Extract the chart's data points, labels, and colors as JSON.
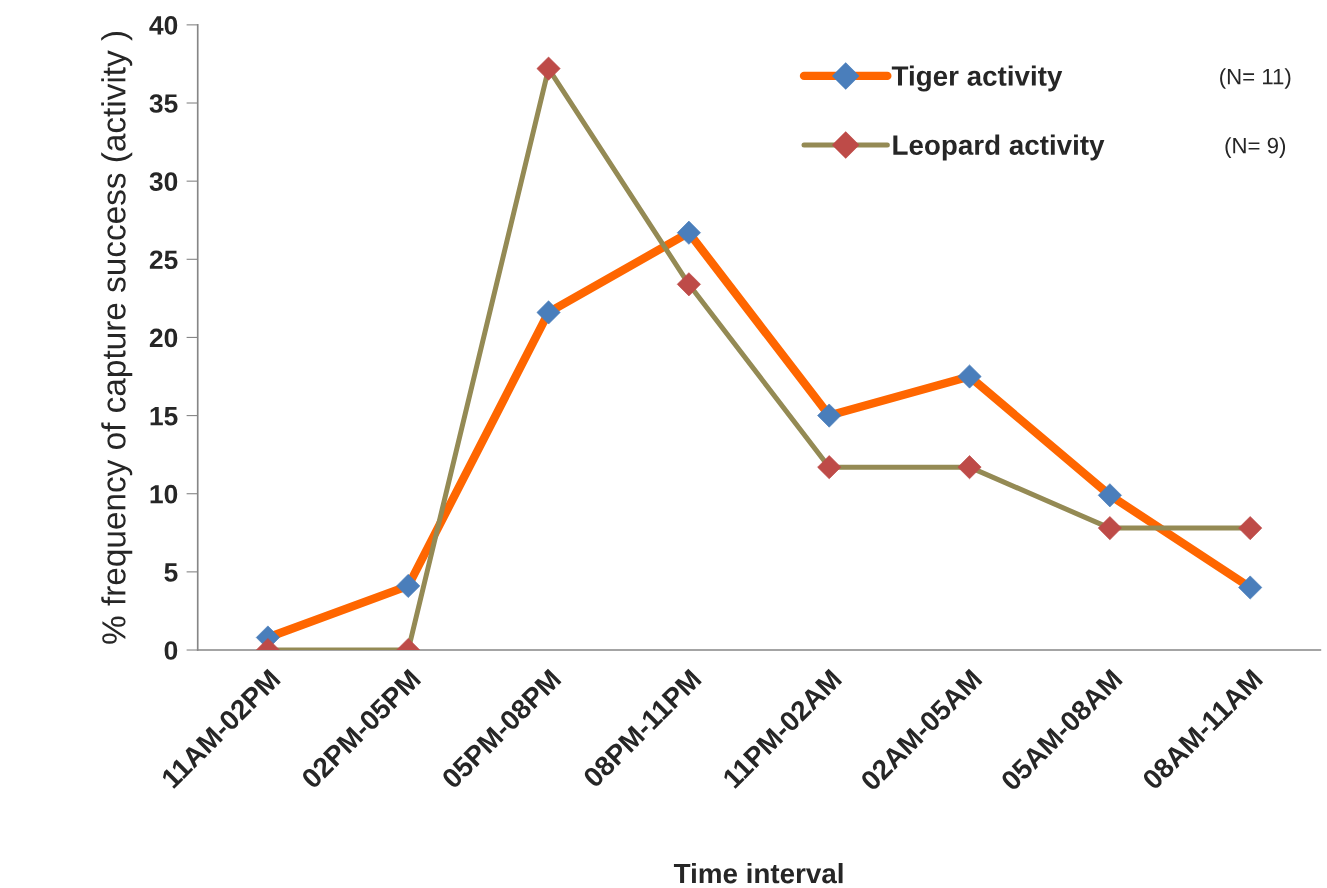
{
  "chart_data": {
    "type": "line",
    "xlabel": "Time interval",
    "ylabel": "% frequency of capture success (activity )",
    "categories": [
      "11AM-02PM",
      "02PM-05PM",
      "05PM-08PM",
      "08PM-11PM",
      "11PM-02AM",
      "02AM-05AM",
      "05AM-08AM",
      "08AM-11AM"
    ],
    "series": [
      {
        "name": "Tiger activity",
        "color": "#ff6600",
        "colors": [
          "#4a7ebb",
          "#4a7ebb",
          "#4a7ebb",
          "#4a7ebb",
          "#4a7ebb",
          "#4a7ebb",
          "#4a7ebb",
          "#4a7ebb"
        ],
        "values": [
          0.8,
          4.1,
          21.6,
          26.7,
          15.0,
          17.5,
          9.9,
          4.0
        ]
      },
      {
        "name": "Leopard activity",
        "color": "#948a54",
        "colors": [
          "#be4b48",
          "#be4b48",
          "#be4b48",
          "#be4b48",
          "#be4b48",
          "#be4b48",
          "#be4b48",
          "#be4b48"
        ],
        "values": [
          0,
          0,
          37.2,
          23.4,
          11.7,
          11.7,
          7.8,
          7.8
        ]
      }
    ],
    "ylim": [
      0,
      40
    ],
    "yticks": [
      0,
      5,
      10,
      15,
      20,
      25,
      30,
      35,
      40
    ],
    "marker": "diamond",
    "line_style": "solid",
    "legend": "top right",
    "grid": false,
    "annotations": [
      "(N= 11)",
      "(N= 9)"
    ]
  }
}
